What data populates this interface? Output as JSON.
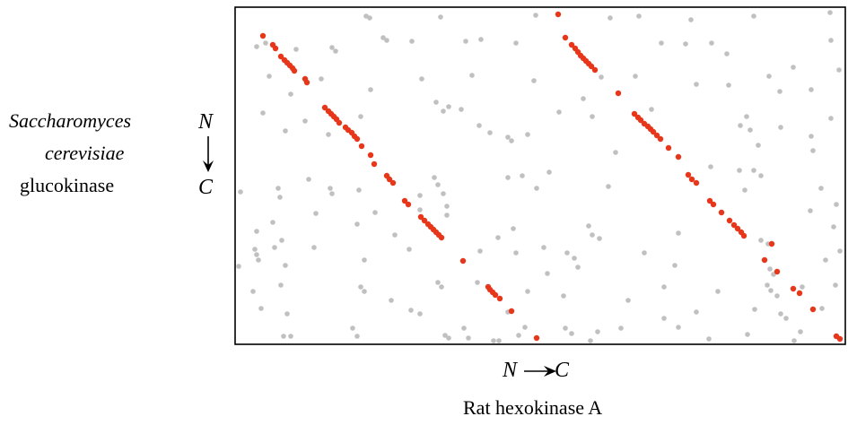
{
  "labels": {
    "y_species": "Saccharomyces",
    "y_species2": "cerevisiae",
    "y_protein": "glucokinase",
    "y_n": "N",
    "y_c": "C",
    "x_n": "N",
    "x_c": "C",
    "x_title": "Rat hexokinase A"
  },
  "colors": {
    "match": "#e8361a",
    "noise": "#c0c0c0",
    "frame": "#000000"
  },
  "chart_data": {
    "type": "scatter",
    "xlim": [
      262,
      942
    ],
    "ylim": [
      8,
      384
    ],
    "series": [
      {
        "points": [
          [
            293,
            40
          ],
          [
            304,
            50
          ],
          [
            307,
            54
          ],
          [
            313,
            63
          ],
          [
            317,
            67
          ],
          [
            320,
            70
          ],
          [
            323,
            73
          ],
          [
            326,
            76
          ],
          [
            328,
            79
          ],
          [
            340,
            88
          ],
          [
            342,
            92
          ],
          [
            362,
            120
          ],
          [
            366,
            124
          ],
          [
            369,
            127
          ],
          [
            372,
            130
          ],
          [
            375,
            133
          ],
          [
            378,
            137
          ],
          [
            385,
            142
          ],
          [
            388,
            145
          ],
          [
            392,
            148
          ],
          [
            395,
            152
          ],
          [
            398,
            155
          ],
          [
            403,
            163
          ],
          [
            413,
            173
          ],
          [
            417,
            183
          ],
          [
            431,
            196
          ],
          [
            434,
            200
          ],
          [
            438,
            204
          ],
          [
            451,
            224
          ],
          [
            455,
            228
          ],
          [
            469,
            242
          ],
          [
            473,
            246
          ],
          [
            477,
            250
          ],
          [
            480,
            253
          ],
          [
            483,
            256
          ],
          [
            486,
            259
          ],
          [
            489,
            262
          ],
          [
            492,
            265
          ],
          [
            516,
            291
          ],
          [
            544,
            320
          ],
          [
            546,
            323
          ],
          [
            549,
            326
          ],
          [
            552,
            329
          ],
          [
            557,
            333
          ],
          [
            570,
            347
          ],
          [
            598,
            377
          ],
          [
            622,
            16
          ],
          [
            630,
            42
          ],
          [
            637,
            50
          ],
          [
            641,
            54
          ],
          [
            644,
            58
          ],
          [
            647,
            62
          ],
          [
            650,
            65
          ],
          [
            653,
            68
          ],
          [
            656,
            71
          ],
          [
            659,
            74
          ],
          [
            663,
            78
          ],
          [
            689,
            104
          ],
          [
            707,
            127
          ],
          [
            711,
            131
          ],
          [
            714,
            134
          ],
          [
            718,
            138
          ],
          [
            722,
            141
          ],
          [
            725,
            144
          ],
          [
            728,
            147
          ],
          [
            732,
            151
          ],
          [
            736,
            155
          ],
          [
            745,
            165
          ],
          [
            756,
            175
          ],
          [
            767,
            195
          ],
          [
            771,
            200
          ],
          [
            776,
            204
          ],
          [
            791,
            224
          ],
          [
            795,
            228
          ],
          [
            804,
            237
          ],
          [
            813,
            246
          ],
          [
            818,
            251
          ],
          [
            822,
            255
          ],
          [
            826,
            259
          ],
          [
            829,
            263
          ],
          [
            860,
            272
          ],
          [
            852,
            290
          ],
          [
            866,
            303
          ],
          [
            884,
            322
          ],
          [
            891,
            327
          ],
          [
            906,
            345
          ],
          [
            932,
            375
          ],
          [
            936,
            378
          ]
        ]
      },
      {
        "points": [
          [
            408,
            18
          ],
          [
            412,
            20
          ],
          [
            491,
            19
          ],
          [
            597,
            17
          ],
          [
            680,
            20
          ],
          [
            712,
            18
          ],
          [
            770,
            22
          ],
          [
            840,
            18
          ],
          [
            925,
            14
          ],
          [
            286,
            52
          ],
          [
            296,
            48
          ],
          [
            330,
            55
          ],
          [
            370,
            53
          ],
          [
            374,
            57
          ],
          [
            427,
            42
          ],
          [
            431,
            45
          ],
          [
            459,
            46
          ],
          [
            519,
            46
          ],
          [
            536,
            44
          ],
          [
            575,
            48
          ],
          [
            737,
            48
          ],
          [
            764,
            49
          ],
          [
            793,
            48
          ],
          [
            810,
            60
          ],
          [
            926,
            45
          ],
          [
            300,
            85
          ],
          [
            324,
            105
          ],
          [
            358,
            88
          ],
          [
            413,
            100
          ],
          [
            470,
            88
          ],
          [
            526,
            84
          ],
          [
            595,
            90
          ],
          [
            670,
            86
          ],
          [
            708,
            85
          ],
          [
            776,
            94
          ],
          [
            812,
            95
          ],
          [
            857,
            85
          ],
          [
            869,
            102
          ],
          [
            884,
            75
          ],
          [
            904,
            100
          ],
          [
            935,
            78
          ],
          [
            293,
            126
          ],
          [
            318,
            146
          ],
          [
            340,
            135
          ],
          [
            366,
            150
          ],
          [
            402,
            130
          ],
          [
            486,
            114
          ],
          [
            494,
            124
          ],
          [
            500,
            119
          ],
          [
            514,
            122
          ],
          [
            534,
            140
          ],
          [
            546,
            148
          ],
          [
            566,
            153
          ],
          [
            570,
            157
          ],
          [
            588,
            150
          ],
          [
            623,
            125
          ],
          [
            650,
            110
          ],
          [
            660,
            130
          ],
          [
            686,
            170
          ],
          [
            726,
            122
          ],
          [
            832,
            130
          ],
          [
            825,
            140
          ],
          [
            836,
            145
          ],
          [
            845,
            162
          ],
          [
            870,
            142
          ],
          [
            904,
            152
          ],
          [
            906,
            168
          ],
          [
            926,
            132
          ],
          [
            268,
            214
          ],
          [
            310,
            210
          ],
          [
            312,
            220
          ],
          [
            344,
            200
          ],
          [
            368,
            210
          ],
          [
            370,
            216
          ],
          [
            400,
            212
          ],
          [
            468,
            218
          ],
          [
            484,
            198
          ],
          [
            488,
            206
          ],
          [
            494,
            216
          ],
          [
            498,
            230
          ],
          [
            566,
            198
          ],
          [
            582,
            196
          ],
          [
            598,
            210
          ],
          [
            612,
            192
          ],
          [
            678,
            208
          ],
          [
            792,
            186
          ],
          [
            824,
            190
          ],
          [
            830,
            212
          ],
          [
            840,
            190
          ],
          [
            848,
            196
          ],
          [
            915,
            210
          ],
          [
            932,
            228
          ],
          [
            286,
            258
          ],
          [
            304,
            248
          ],
          [
            314,
            268
          ],
          [
            352,
            238
          ],
          [
            398,
            250
          ],
          [
            418,
            237
          ],
          [
            440,
            262
          ],
          [
            468,
            234
          ],
          [
            498,
            240
          ],
          [
            555,
            265
          ],
          [
            572,
            255
          ],
          [
            606,
            276
          ],
          [
            632,
            282
          ],
          [
            656,
            252
          ],
          [
            660,
            262
          ],
          [
            668,
            266
          ],
          [
            756,
            260
          ],
          [
            848,
            268
          ],
          [
            856,
            272
          ],
          [
            903,
            235
          ],
          [
            929,
            253
          ],
          [
            286,
            284
          ],
          [
            288,
            290
          ],
          [
            284,
            278
          ],
          [
            266,
            297
          ],
          [
            306,
            276
          ],
          [
            318,
            296
          ],
          [
            350,
            276
          ],
          [
            406,
            290
          ],
          [
            456,
            278
          ],
          [
            535,
            280
          ],
          [
            575,
            282
          ],
          [
            640,
            288
          ],
          [
            644,
            298
          ],
          [
            718,
            282
          ],
          [
            752,
            296
          ],
          [
            858,
            300
          ],
          [
            862,
            306
          ],
          [
            920,
            290
          ],
          [
            936,
            280
          ],
          [
            282,
            325
          ],
          [
            313,
            318
          ],
          [
            402,
            320
          ],
          [
            406,
            325
          ],
          [
            436,
            335
          ],
          [
            488,
            315
          ],
          [
            492,
            320
          ],
          [
            532,
            315
          ],
          [
            588,
            325
          ],
          [
            610,
            305
          ],
          [
            628,
            330
          ],
          [
            700,
            335
          ],
          [
            740,
            320
          ],
          [
            800,
            325
          ],
          [
            855,
            318
          ],
          [
            859,
            324
          ],
          [
            866,
            330
          ],
          [
            894,
            320
          ],
          [
            931,
            318
          ],
          [
            291,
            344
          ],
          [
            320,
            350
          ],
          [
            458,
            346
          ],
          [
            468,
            350
          ],
          [
            566,
            348
          ],
          [
            740,
            355
          ],
          [
            776,
            348
          ],
          [
            841,
            345
          ],
          [
            870,
            350
          ],
          [
            876,
            355
          ],
          [
            916,
            344
          ],
          [
            316,
            375
          ],
          [
            324,
            375
          ],
          [
            393,
            366
          ],
          [
            398,
            375
          ],
          [
            496,
            374
          ],
          [
            500,
            377
          ],
          [
            517,
            366
          ],
          [
            522,
            377
          ],
          [
            550,
            380
          ],
          [
            556,
            380
          ],
          [
            578,
            374
          ],
          [
            585,
            365
          ],
          [
            630,
            366
          ],
          [
            637,
            372
          ],
          [
            658,
            380
          ],
          [
            666,
            370
          ],
          [
            692,
            366
          ],
          [
            756,
            365
          ],
          [
            790,
            378
          ],
          [
            833,
            373
          ],
          [
            885,
            380
          ],
          [
            892,
            370
          ]
        ]
      }
    ]
  }
}
